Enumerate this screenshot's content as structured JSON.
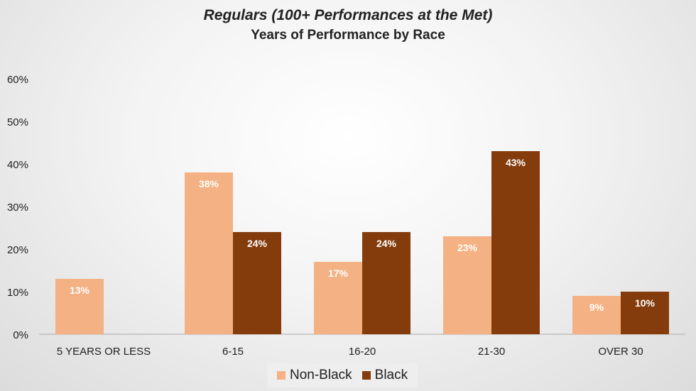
{
  "chart_data": {
    "type": "bar",
    "title": "Regulars (100+ Performances at the Met)",
    "subtitle": "Years of Performance by Race",
    "categories": [
      "5 YEARS OR LESS",
      "6-15",
      "16-20",
      "21-30",
      "OVER 30"
    ],
    "series": [
      {
        "name": "Non-Black",
        "color": "#F4B183",
        "values": [
          13,
          38,
          17,
          23,
          9
        ],
        "labels": [
          "13%",
          "38%",
          "17%",
          "23%",
          "9%"
        ]
      },
      {
        "name": "Black",
        "color": "#843C0C",
        "values": [
          null,
          24,
          24,
          43,
          10
        ],
        "labels": [
          null,
          "24%",
          "24%",
          "43%",
          "10%"
        ]
      }
    ],
    "yticks": [
      "0%",
      "10%",
      "20%",
      "30%",
      "40%",
      "50%",
      "60%"
    ],
    "ylim": [
      0,
      60
    ],
    "grid": false,
    "legend_position": "bottom"
  }
}
